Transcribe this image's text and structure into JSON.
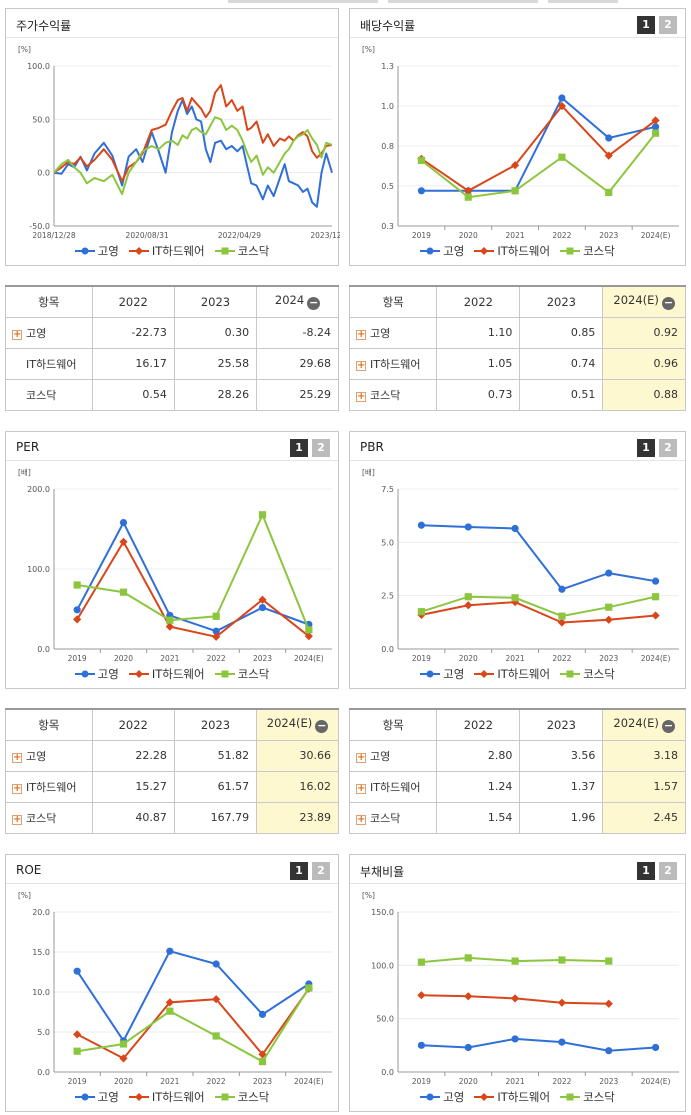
{
  "colors": {
    "series1": "#2f6fd8",
    "series2": "#d9461a",
    "series3": "#8cc63f",
    "highlight": "#fdf8d0"
  },
  "legend": [
    "고영",
    "IT하드웨어",
    "코스닥"
  ],
  "tabs": [
    "1",
    "2"
  ],
  "panels": {
    "stock": {
      "title": "주가수익률"
    },
    "dividend": {
      "title": "배당수익률"
    },
    "per": {
      "title": "PER"
    },
    "pbr": {
      "title": "PBR"
    },
    "roe": {
      "title": "ROE"
    },
    "debt": {
      "title": "부채비율"
    }
  },
  "tables": {
    "stock": {
      "header": [
        "항목",
        "2022",
        "2023",
        "2024"
      ],
      "rows": [
        {
          "name": "고영",
          "plus": true,
          "values": [
            "-22.73",
            "0.30",
            "-8.24"
          ]
        },
        {
          "name": "IT하드웨어",
          "plus": false,
          "values": [
            "16.17",
            "25.58",
            "29.68"
          ]
        },
        {
          "name": "코스닥",
          "plus": false,
          "values": [
            "0.54",
            "28.26",
            "25.29"
          ]
        }
      ]
    },
    "dividend": {
      "header": [
        "항목",
        "2022",
        "2023",
        "2024(E)"
      ],
      "rows": [
        {
          "name": "고영",
          "plus": true,
          "values": [
            "1.10",
            "0.85",
            "0.92"
          ]
        },
        {
          "name": "IT하드웨어",
          "plus": true,
          "values": [
            "1.05",
            "0.74",
            "0.96"
          ]
        },
        {
          "name": "코스닥",
          "plus": true,
          "values": [
            "0.73",
            "0.51",
            "0.88"
          ]
        }
      ]
    },
    "per": {
      "header": [
        "항목",
        "2022",
        "2023",
        "2024(E)"
      ],
      "rows": [
        {
          "name": "고영",
          "plus": true,
          "values": [
            "22.28",
            "51.82",
            "30.66"
          ]
        },
        {
          "name": "IT하드웨어",
          "plus": true,
          "values": [
            "15.27",
            "61.57",
            "16.02"
          ]
        },
        {
          "name": "코스닥",
          "plus": true,
          "values": [
            "40.87",
            "167.79",
            "23.89"
          ]
        }
      ]
    },
    "pbr": {
      "header": [
        "항목",
        "2022",
        "2023",
        "2024(E)"
      ],
      "rows": [
        {
          "name": "고영",
          "plus": true,
          "values": [
            "2.80",
            "3.56",
            "3.18"
          ]
        },
        {
          "name": "IT하드웨어",
          "plus": true,
          "values": [
            "1.24",
            "1.37",
            "1.57"
          ]
        },
        {
          "name": "코스닥",
          "plus": true,
          "values": [
            "1.54",
            "1.96",
            "2.45"
          ]
        }
      ]
    }
  },
  "chart_data": [
    {
      "id": "stock",
      "type": "line",
      "unit": "[%]",
      "ylim": [
        -50,
        100
      ],
      "yticks": [
        "100.0",
        "50.0",
        "0.0",
        "-50.0"
      ],
      "xticks": [
        "2018/12/28",
        "2020/08/31",
        "2022/04/29",
        "2023/12/28"
      ],
      "x_range": [
        "2018-12-28",
        "2023-12-28"
      ],
      "series": [
        {
          "name": "고영",
          "points": [
            [
              "2018-12-28",
              0
            ],
            [
              "2019-02-15",
              -1
            ],
            [
              "2019-04-01",
              8
            ],
            [
              "2019-05-10",
              5
            ],
            [
              "2019-06-20",
              15
            ],
            [
              "2019-08-01",
              2
            ],
            [
              "2019-09-20",
              18
            ],
            [
              "2019-11-20",
              28
            ],
            [
              "2020-01-15",
              16
            ],
            [
              "2020-03-19",
              -12
            ],
            [
              "2020-05-01",
              15
            ],
            [
              "2020-06-20",
              22
            ],
            [
              "2020-08-01",
              10
            ],
            [
              "2020-09-30",
              38
            ],
            [
              "2020-11-15",
              20
            ],
            [
              "2020-12-30",
              0
            ],
            [
              "2021-02-10",
              38
            ],
            [
              "2021-03-20",
              58
            ],
            [
              "2021-04-20",
              68
            ],
            [
              "2021-05-20",
              55
            ],
            [
              "2021-06-20",
              62
            ],
            [
              "2021-07-20",
              50
            ],
            [
              "2021-08-20",
              48
            ],
            [
              "2021-09-20",
              22
            ],
            [
              "2021-10-20",
              10
            ],
            [
              "2021-11-20",
              28
            ],
            [
              "2021-12-28",
              30
            ],
            [
              "2022-02-01",
              22
            ],
            [
              "2022-03-10",
              25
            ],
            [
              "2022-04-15",
              20
            ],
            [
              "2022-05-20",
              25
            ],
            [
              "2022-06-20",
              5
            ],
            [
              "2022-07-15",
              -10
            ],
            [
              "2022-08-20",
              -12
            ],
            [
              "2022-09-30",
              -25
            ],
            [
              "2022-11-01",
              -12
            ],
            [
              "2022-12-10",
              -22
            ],
            [
              "2023-01-20",
              -5
            ],
            [
              "2023-02-20",
              8
            ],
            [
              "2023-03-20",
              -8
            ],
            [
              "2023-04-20",
              -10
            ],
            [
              "2023-05-20",
              -12
            ],
            [
              "2023-06-20",
              -18
            ],
            [
              "2023-07-20",
              -15
            ],
            [
              "2023-08-20",
              -28
            ],
            [
              "2023-09-20",
              -32
            ],
            [
              "2023-10-20",
              0
            ],
            [
              "2023-11-20",
              18
            ],
            [
              "2023-12-28",
              0
            ]
          ]
        },
        {
          "name": "IT하드웨어",
          "points": [
            [
              "2018-12-28",
              0
            ],
            [
              "2019-02-15",
              5
            ],
            [
              "2019-04-01",
              10
            ],
            [
              "2019-05-10",
              8
            ],
            [
              "2019-06-20",
              14
            ],
            [
              "2019-08-01",
              6
            ],
            [
              "2019-09-20",
              12
            ],
            [
              "2019-11-20",
              22
            ],
            [
              "2020-01-15",
              12
            ],
            [
              "2020-03-19",
              -8
            ],
            [
              "2020-05-01",
              5
            ],
            [
              "2020-06-20",
              10
            ],
            [
              "2020-08-01",
              18
            ],
            [
              "2020-09-30",
              40
            ],
            [
              "2020-11-15",
              42
            ],
            [
              "2020-12-30",
              45
            ],
            [
              "2021-02-10",
              58
            ],
            [
              "2021-03-20",
              68
            ],
            [
              "2021-04-20",
              70
            ],
            [
              "2021-05-20",
              58
            ],
            [
              "2021-06-20",
              70
            ],
            [
              "2021-07-20",
              65
            ],
            [
              "2021-08-20",
              60
            ],
            [
              "2021-09-20",
              52
            ],
            [
              "2021-10-20",
              58
            ],
            [
              "2021-11-20",
              75
            ],
            [
              "2021-12-28",
              82
            ],
            [
              "2022-02-01",
              62
            ],
            [
              "2022-03-10",
              68
            ],
            [
              "2022-04-15",
              58
            ],
            [
              "2022-05-20",
              62
            ],
            [
              "2022-06-20",
              40
            ],
            [
              "2022-07-15",
              42
            ],
            [
              "2022-08-20",
              48
            ],
            [
              "2022-09-30",
              28
            ],
            [
              "2022-11-01",
              36
            ],
            [
              "2022-12-10",
              25
            ],
            [
              "2023-01-20",
              32
            ],
            [
              "2023-02-20",
              30
            ],
            [
              "2023-03-20",
              34
            ],
            [
              "2023-04-20",
              30
            ],
            [
              "2023-05-20",
              35
            ],
            [
              "2023-06-20",
              38
            ],
            [
              "2023-07-20",
              34
            ],
            [
              "2023-08-20",
              20
            ],
            [
              "2023-09-20",
              14
            ],
            [
              "2023-10-20",
              18
            ],
            [
              "2023-11-20",
              25
            ],
            [
              "2023-12-28",
              26
            ]
          ]
        },
        {
          "name": "코스닥",
          "points": [
            [
              "2018-12-28",
              0
            ],
            [
              "2019-02-15",
              8
            ],
            [
              "2019-04-01",
              12
            ],
            [
              "2019-05-10",
              5
            ],
            [
              "2019-06-20",
              0
            ],
            [
              "2019-08-01",
              -10
            ],
            [
              "2019-09-20",
              -5
            ],
            [
              "2019-11-20",
              -8
            ],
            [
              "2020-01-15",
              -2
            ],
            [
              "2020-03-19",
              -20
            ],
            [
              "2020-05-01",
              0
            ],
            [
              "2020-06-20",
              10
            ],
            [
              "2020-08-01",
              20
            ],
            [
              "2020-09-30",
              25
            ],
            [
              "2020-11-15",
              22
            ],
            [
              "2020-12-30",
              28
            ],
            [
              "2021-02-10",
              30
            ],
            [
              "2021-03-20",
              26
            ],
            [
              "2021-04-20",
              35
            ],
            [
              "2021-05-20",
              32
            ],
            [
              "2021-06-20",
              40
            ],
            [
              "2021-07-20",
              42
            ],
            [
              "2021-08-20",
              38
            ],
            [
              "2021-09-20",
              36
            ],
            [
              "2021-10-20",
              44
            ],
            [
              "2021-11-20",
              52
            ],
            [
              "2021-12-28",
              50
            ],
            [
              "2022-02-01",
              40
            ],
            [
              "2022-03-10",
              44
            ],
            [
              "2022-04-15",
              40
            ],
            [
              "2022-05-20",
              30
            ],
            [
              "2022-06-20",
              18
            ],
            [
              "2022-07-15",
              10
            ],
            [
              "2022-08-20",
              16
            ],
            [
              "2022-09-30",
              -2
            ],
            [
              "2022-11-01",
              5
            ],
            [
              "2022-12-10",
              0
            ],
            [
              "2023-01-20",
              10
            ],
            [
              "2023-02-20",
              18
            ],
            [
              "2023-03-20",
              22
            ],
            [
              "2023-04-20",
              30
            ],
            [
              "2023-05-20",
              34
            ],
            [
              "2023-06-20",
              36
            ],
            [
              "2023-07-20",
              40
            ],
            [
              "2023-08-20",
              32
            ],
            [
              "2023-09-20",
              26
            ],
            [
              "2023-10-20",
              14
            ],
            [
              "2023-11-20",
              28
            ],
            [
              "2023-12-28",
              26
            ]
          ]
        }
      ]
    },
    {
      "id": "dividend",
      "type": "line",
      "unit": "[%]",
      "ylim": [
        0.3,
        1.3
      ],
      "yticks": [
        "1.3",
        "1.0",
        "0.8",
        "0.5",
        "0.3"
      ],
      "categories": [
        "2019",
        "2020",
        "2021",
        "2022",
        "2023",
        "2024(E)"
      ],
      "series": [
        {
          "name": "고영",
          "values": [
            0.52,
            0.52,
            0.52,
            1.1,
            0.85,
            0.92
          ]
        },
        {
          "name": "IT하드웨어",
          "values": [
            0.72,
            0.52,
            0.68,
            1.05,
            0.74,
            0.96
          ]
        },
        {
          "name": "코스닥",
          "values": [
            0.71,
            0.48,
            0.52,
            0.73,
            0.51,
            0.88
          ]
        }
      ]
    },
    {
      "id": "per",
      "type": "line",
      "unit": "[배]",
      "ylim": [
        0,
        200
      ],
      "yticks": [
        "200.0",
        "100.0",
        "0.0"
      ],
      "categories": [
        "2019",
        "2020",
        "2021",
        "2022",
        "2023",
        "2024(E)"
      ],
      "series": [
        {
          "name": "고영",
          "values": [
            49,
            158,
            42,
            22.28,
            51.82,
            30.66
          ]
        },
        {
          "name": "IT하드웨어",
          "values": [
            37,
            134,
            28,
            15.27,
            61.57,
            16.02
          ]
        },
        {
          "name": "코스닥",
          "values": [
            80,
            71,
            36,
            40.87,
            167.79,
            23.89
          ]
        }
      ]
    },
    {
      "id": "pbr",
      "type": "line",
      "unit": "[배]",
      "ylim": [
        0,
        7.5
      ],
      "yticks": [
        "7.5",
        "5.0",
        "2.5",
        "0.0"
      ],
      "categories": [
        "2019",
        "2020",
        "2021",
        "2022",
        "2023",
        "2024(E)"
      ],
      "series": [
        {
          "name": "고영",
          "values": [
            5.8,
            5.72,
            5.65,
            2.8,
            3.56,
            3.18
          ]
        },
        {
          "name": "IT하드웨어",
          "values": [
            1.6,
            2.05,
            2.2,
            1.24,
            1.37,
            1.57
          ]
        },
        {
          "name": "코스닥",
          "values": [
            1.75,
            2.45,
            2.4,
            1.54,
            1.96,
            2.45
          ]
        }
      ]
    },
    {
      "id": "roe",
      "type": "line",
      "unit": "[%]",
      "ylim": [
        0,
        20
      ],
      "yticks": [
        "20.0",
        "15.0",
        "10.0",
        "5.0",
        "0.0"
      ],
      "categories": [
        "2019",
        "2020",
        "2021",
        "2022",
        "2023",
        "2024(E)"
      ],
      "series": [
        {
          "name": "고영",
          "values": [
            12.6,
            3.9,
            15.1,
            13.5,
            7.2,
            11.0
          ]
        },
        {
          "name": "IT하드웨어",
          "values": [
            4.7,
            1.7,
            8.7,
            9.1,
            2.2,
            10.4
          ]
        },
        {
          "name": "코스닥",
          "values": [
            2.6,
            3.5,
            7.6,
            4.5,
            1.3,
            10.5
          ]
        }
      ]
    },
    {
      "id": "debt",
      "type": "line",
      "unit": "[%]",
      "ylim": [
        0,
        150
      ],
      "yticks": [
        "150.0",
        "100.0",
        "50.0",
        "0.0"
      ],
      "categories": [
        "2019",
        "2020",
        "2021",
        "2022",
        "2023",
        "2024(E)"
      ],
      "series": [
        {
          "name": "고영",
          "values": [
            25,
            23,
            31,
            28,
            20,
            23
          ]
        },
        {
          "name": "IT하드웨어",
          "values": [
            72,
            71,
            69,
            65,
            64,
            null
          ]
        },
        {
          "name": "코스닥",
          "values": [
            103,
            107,
            104,
            105,
            104,
            null
          ]
        }
      ]
    }
  ]
}
